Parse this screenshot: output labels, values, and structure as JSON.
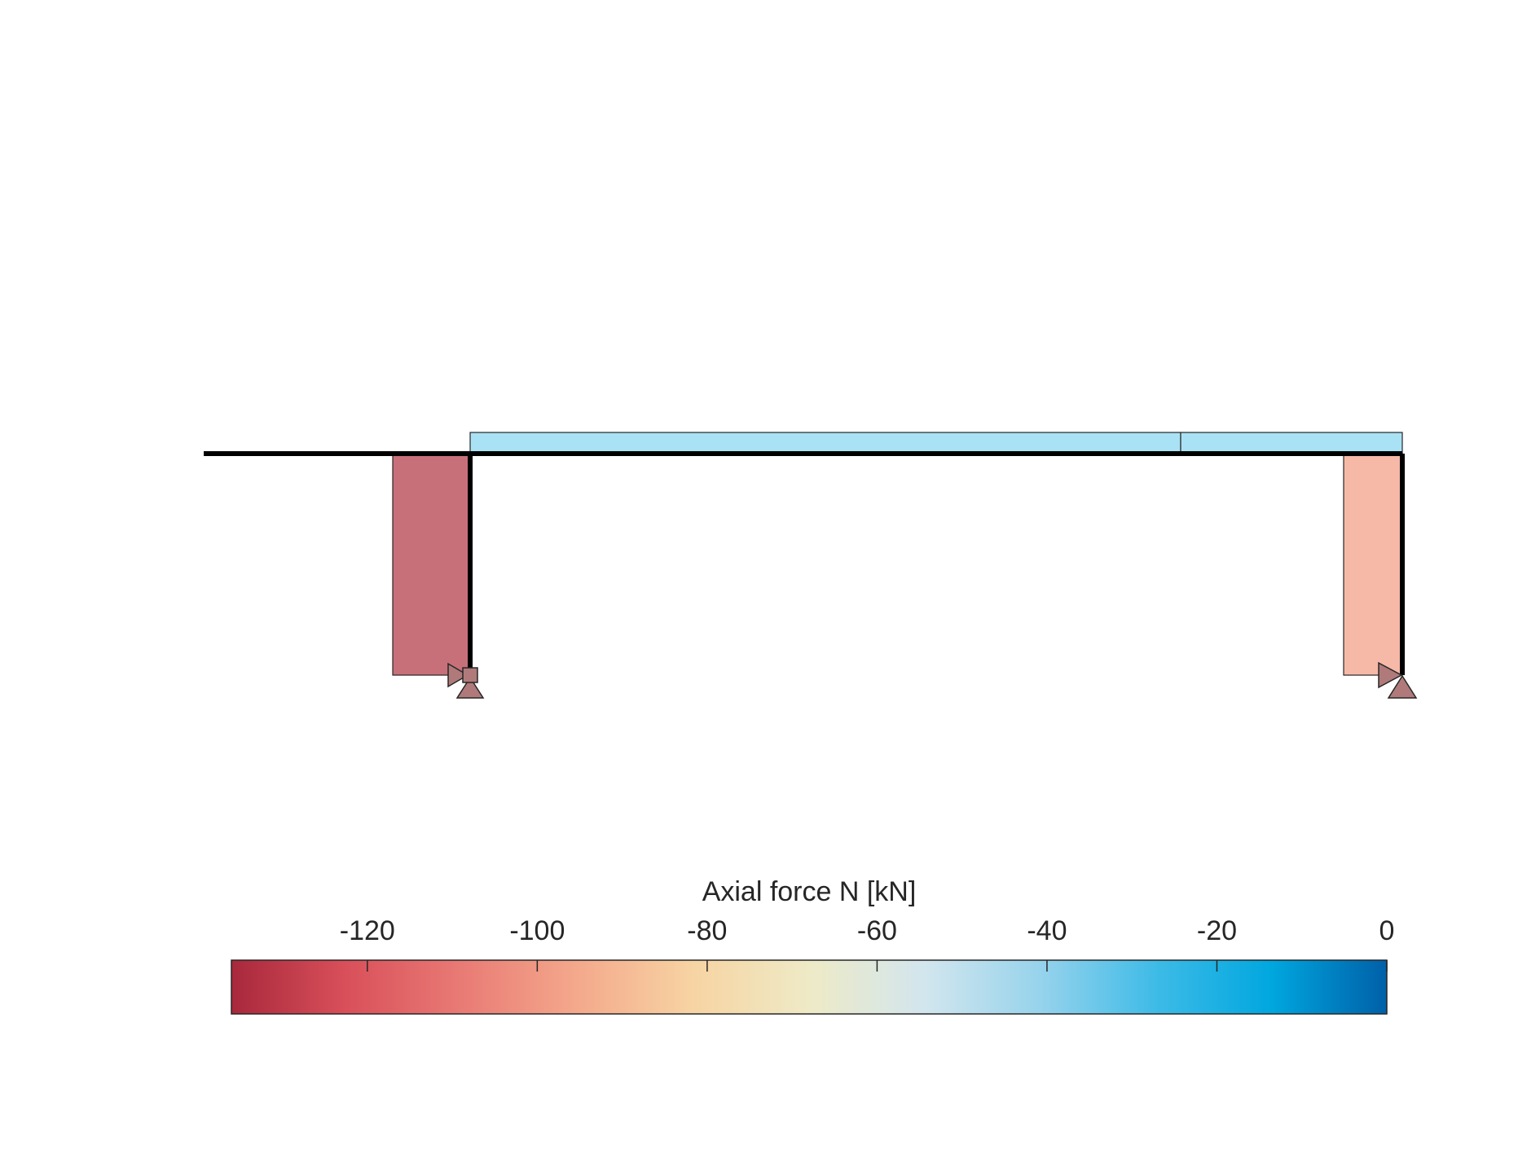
{
  "diagram": {
    "type": "axial force diagram",
    "colorbar": {
      "label": "Axial force N [kN]",
      "min": -136,
      "max": 0,
      "ticks": [
        -120,
        -100,
        -80,
        -60,
        -40,
        -20,
        0
      ],
      "tick_labels": [
        "-120",
        "-100",
        "-80",
        "-60",
        "-40",
        "-20",
        "0"
      ],
      "colormap": [
        "#a8283c",
        "#d9505a",
        "#e97b75",
        "#f4a98c",
        "#f7d4a3",
        "#eeeac6",
        "#d2e6ee",
        "#97d3ec",
        "#3ebbe7",
        "#00a7df",
        "#0060a8"
      ]
    },
    "members": [
      {
        "name": "left-column",
        "axial_force": -126,
        "fill": "#c8707a"
      },
      {
        "name": "beam-segment-1",
        "axial_force": -27,
        "fill": "#a9e2f4"
      },
      {
        "name": "beam-segment-2",
        "axial_force": -27,
        "fill": "#a9e2f4"
      },
      {
        "name": "right-column",
        "axial_force": -92,
        "fill": "#f6b9a7"
      }
    ],
    "colors": {
      "structure": "#000000",
      "support": "#b07a7a",
      "outline": "#262626"
    }
  }
}
